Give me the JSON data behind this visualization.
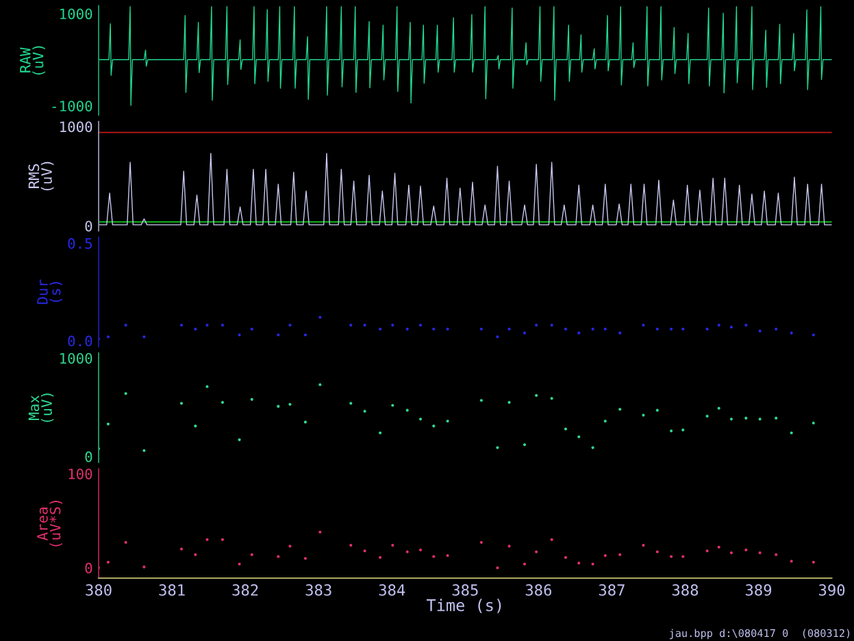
{
  "chart_data": [
    {
      "type": "line",
      "ylabel": "RAW\n(uV)",
      "color": "#20d890",
      "xlim": [
        380,
        390
      ],
      "ylim": [
        -1200,
        1170
      ],
      "yticks": [
        -1000,
        1000
      ],
      "tick_labels": "y",
      "x": [
        380.0,
        380.14,
        380.16,
        380.17,
        380.19,
        380.41,
        380.43,
        380.44,
        380.46,
        380.62,
        380.64,
        380.65,
        380.67,
        381.16,
        381.18,
        381.19,
        381.21,
        381.34,
        381.36,
        381.37,
        381.39,
        381.52,
        381.54,
        381.55,
        381.57,
        381.73,
        381.75,
        381.76,
        381.78,
        381.91,
        381.93,
        381.94,
        381.96,
        382.1,
        382.12,
        382.13,
        382.15,
        382.28,
        382.3,
        382.31,
        382.33,
        382.45,
        382.47,
        382.48,
        382.5,
        382.65,
        382.67,
        382.68,
        382.7,
        382.83,
        382.85,
        382.86,
        382.88,
        383.09,
        383.11,
        383.12,
        383.14,
        383.29,
        383.31,
        383.32,
        383.34,
        383.48,
        383.5,
        383.51,
        383.53,
        383.67,
        383.69,
        383.7,
        383.72,
        383.86,
        383.88,
        383.89,
        383.91,
        384.05,
        384.07,
        384.08,
        384.1,
        384.23,
        384.25,
        384.26,
        384.28,
        384.41,
        384.43,
        384.44,
        384.46,
        384.6,
        384.62,
        384.63,
        384.65,
        384.82,
        384.84,
        384.85,
        384.87,
        385.07,
        385.09,
        385.1,
        385.12,
        385.25,
        385.27,
        385.28,
        385.3,
        385.43,
        385.45,
        385.46,
        385.48,
        385.62,
        385.64,
        385.65,
        385.67,
        385.81,
        385.83,
        385.84,
        385.86,
        386.0,
        386.02,
        386.03,
        386.05,
        386.19,
        386.21,
        386.22,
        386.24,
        386.39,
        386.41,
        386.42,
        386.44,
        386.56,
        386.58,
        386.59,
        386.61,
        386.74,
        386.76,
        386.77,
        386.79,
        386.92,
        386.94,
        386.95,
        386.97,
        387.1,
        387.12,
        387.13,
        387.15,
        387.27,
        387.29,
        387.3,
        387.32,
        387.46,
        387.48,
        387.49,
        387.51,
        387.65,
        387.67,
        387.68,
        387.7,
        387.83,
        387.85,
        387.86,
        387.88,
        388.02,
        388.04,
        388.05,
        388.07,
        388.3,
        388.32,
        388.33,
        388.35,
        388.5,
        388.52,
        388.53,
        388.55,
        388.68,
        388.7,
        388.71,
        388.73,
        388.89,
        388.91,
        388.92,
        388.94,
        389.08,
        389.1,
        389.11,
        389.13,
        389.27,
        389.29,
        389.3,
        389.32,
        389.46,
        389.48,
        389.49,
        389.51,
        389.64,
        389.66,
        389.67,
        389.69,
        389.83,
        389.85,
        389.86,
        389.88,
        390.0
      ],
      "values": [
        0,
        0,
        780,
        -340,
        0,
        0,
        1150,
        -990,
        0,
        0,
        210,
        -140,
        0,
        0,
        960,
        -710,
        0,
        0,
        810,
        -280,
        0,
        0,
        1150,
        -880,
        0,
        0,
        1150,
        -540,
        0,
        0,
        430,
        -210,
        0,
        0,
        1150,
        -520,
        0,
        0,
        1090,
        -470,
        0,
        0,
        1150,
        -620,
        0,
        0,
        1150,
        -620,
        0,
        0,
        500,
        -860,
        0,
        0,
        1150,
        -770,
        0,
        0,
        1150,
        -590,
        0,
        0,
        1150,
        -710,
        0,
        0,
        830,
        -610,
        0,
        0,
        750,
        -440,
        0,
        0,
        1150,
        -690,
        0,
        0,
        810,
        -940,
        0,
        0,
        750,
        -510,
        0,
        0,
        750,
        -270,
        0,
        0,
        910,
        -270,
        0,
        0,
        980,
        -270,
        0,
        0,
        1150,
        -850,
        0,
        0,
        90,
        -200,
        0,
        0,
        1120,
        -620,
        0,
        0,
        370,
        -110,
        0,
        0,
        1150,
        -470,
        0,
        0,
        1150,
        -880,
        0,
        0,
        750,
        -470,
        0,
        0,
        540,
        -270,
        0,
        0,
        240,
        -200,
        0,
        0,
        960,
        -240,
        0,
        0,
        1150,
        -550,
        0,
        0,
        370,
        -170,
        0,
        0,
        1150,
        -570,
        0,
        0,
        1150,
        -440,
        0,
        0,
        700,
        -300,
        0,
        0,
        570,
        -520,
        0,
        0,
        1120,
        -570,
        0,
        0,
        1010,
        -720,
        0,
        0,
        1150,
        -500,
        0,
        0,
        1150,
        -650,
        0,
        0,
        640,
        -600,
        0,
        0,
        770,
        -520,
        0,
        0,
        570,
        -240,
        0,
        0,
        1080,
        -650,
        0,
        0,
        1150,
        -430,
        0,
        0
      ]
    },
    {
      "type": "line",
      "ylabel": "RMS\n(uV)",
      "color": "#c8c8f0",
      "xlim": [
        380,
        390
      ],
      "ylim": [
        -50,
        1050
      ],
      "yticks": [
        0,
        1000
      ],
      "tick_labels": "y",
      "ref_lines": [
        {
          "axis": "y",
          "value": 940,
          "color": "#c81818"
        },
        {
          "axis": "y",
          "value": 40,
          "color": "#10d020"
        }
      ],
      "x": [
        380.0,
        380.11,
        380.15,
        380.19,
        380.39,
        380.43,
        380.47,
        380.58,
        380.62,
        380.66,
        381.12,
        381.16,
        381.2,
        381.3,
        381.34,
        381.38,
        381.49,
        381.53,
        381.57,
        381.71,
        381.75,
        381.79,
        381.89,
        381.93,
        381.97,
        382.07,
        382.11,
        382.15,
        382.24,
        382.28,
        382.32,
        382.41,
        382.45,
        382.49,
        382.62,
        382.66,
        382.7,
        382.79,
        382.83,
        382.87,
        383.07,
        383.11,
        383.15,
        383.27,
        383.31,
        383.35,
        383.44,
        383.48,
        383.52,
        383.65,
        383.69,
        383.73,
        383.83,
        383.87,
        383.91,
        384.0,
        384.04,
        384.08,
        384.19,
        384.23,
        384.27,
        384.35,
        384.39,
        384.43,
        384.53,
        384.57,
        384.61,
        384.71,
        384.75,
        384.79,
        384.89,
        384.93,
        384.97,
        385.06,
        385.1,
        385.14,
        385.23,
        385.27,
        385.31,
        385.4,
        385.44,
        385.48,
        385.56,
        385.6,
        385.64,
        385.77,
        385.81,
        385.85,
        385.93,
        385.97,
        386.01,
        386.14,
        386.18,
        386.22,
        386.31,
        386.35,
        386.39,
        386.51,
        386.55,
        386.59,
        386.7,
        386.74,
        386.78,
        386.87,
        386.91,
        386.95,
        387.06,
        387.1,
        387.14,
        387.22,
        387.26,
        387.3,
        387.4,
        387.44,
        387.48,
        387.6,
        387.64,
        387.68,
        387.8,
        387.84,
        387.88,
        387.99,
        388.03,
        388.07,
        388.16,
        388.2,
        388.24,
        388.34,
        388.38,
        388.42,
        388.5,
        388.54,
        388.58,
        388.7,
        388.74,
        388.78,
        388.87,
        388.91,
        388.95,
        389.04,
        389.08,
        389.12,
        389.23,
        389.27,
        389.31,
        389.45,
        389.49,
        389.53,
        389.63,
        389.67,
        389.71,
        389.82,
        389.86,
        389.9,
        390.0
      ],
      "values": [
        10,
        10,
        330,
        10,
        10,
        640,
        10,
        10,
        70,
        10,
        10,
        550,
        10,
        10,
        310,
        10,
        10,
        730,
        10,
        10,
        570,
        10,
        10,
        190,
        10,
        10,
        570,
        10,
        10,
        570,
        10,
        10,
        420,
        10,
        10,
        540,
        10,
        10,
        350,
        10,
        10,
        730,
        10,
        10,
        570,
        10,
        10,
        450,
        10,
        10,
        510,
        10,
        10,
        350,
        10,
        10,
        530,
        10,
        10,
        410,
        10,
        10,
        400,
        10,
        10,
        200,
        10,
        10,
        480,
        10,
        10,
        380,
        10,
        10,
        440,
        10,
        10,
        210,
        10,
        10,
        600,
        10,
        10,
        450,
        10,
        10,
        210,
        10,
        10,
        620,
        10,
        10,
        640,
        10,
        10,
        210,
        10,
        10,
        410,
        10,
        10,
        210,
        10,
        10,
        420,
        10,
        10,
        220,
        10,
        10,
        420,
        10,
        10,
        420,
        10,
        10,
        460,
        10,
        10,
        260,
        10,
        10,
        410,
        10,
        10,
        360,
        10,
        10,
        480,
        10,
        10,
        480,
        10,
        10,
        410,
        10,
        10,
        320,
        10,
        10,
        350,
        10,
        10,
        330,
        10,
        10,
        490,
        10,
        10,
        420,
        10,
        10,
        420,
        10,
        10
      ]
    },
    {
      "type": "scatter",
      "ylabel": "Dur\n(s)",
      "color": "#2828e8",
      "xlim": [
        380,
        390
      ],
      "ylim": [
        -0.03,
        0.53
      ],
      "yticks": [
        {
          "value": 0,
          "label": "0.0"
        },
        {
          "value": 0.5,
          "label": "0.5"
        }
      ],
      "tick_labels": "y",
      "x": [
        380.0,
        380.13,
        380.37,
        380.62,
        381.13,
        381.32,
        381.48,
        381.69,
        381.92,
        382.09,
        382.45,
        382.61,
        382.82,
        383.02,
        383.44,
        383.63,
        383.84,
        384.01,
        384.21,
        384.39,
        384.57,
        384.76,
        385.22,
        385.44,
        385.6,
        385.81,
        385.97,
        386.18,
        386.37,
        386.55,
        386.74,
        386.91,
        387.11,
        387.43,
        387.62,
        387.81,
        387.97,
        388.3,
        388.46,
        388.63,
        388.83,
        389.02,
        389.24,
        389.45,
        389.75
      ],
      "values": [
        0.01,
        0.02,
        0.08,
        0.02,
        0.08,
        0.06,
        0.08,
        0.08,
        0.03,
        0.06,
        0.03,
        0.08,
        0.03,
        0.12,
        0.08,
        0.08,
        0.06,
        0.08,
        0.06,
        0.08,
        0.06,
        0.06,
        0.06,
        0.02,
        0.06,
        0.04,
        0.08,
        0.08,
        0.06,
        0.04,
        0.06,
        0.06,
        0.04,
        0.08,
        0.06,
        0.06,
        0.06,
        0.06,
        0.08,
        0.07,
        0.08,
        0.05,
        0.06,
        0.04,
        0.03
      ]
    },
    {
      "type": "scatter",
      "ylabel": "Max\n(uV)",
      "color": "#30d890",
      "xlim": [
        380,
        390
      ],
      "ylim": [
        -60,
        1050
      ],
      "yticks": [
        0,
        1000
      ],
      "tick_labels": "y",
      "x": [
        380.0,
        380.13,
        380.37,
        380.62,
        381.13,
        381.32,
        381.48,
        381.69,
        381.92,
        382.09,
        382.45,
        382.61,
        382.82,
        383.02,
        383.44,
        383.63,
        383.84,
        384.01,
        384.21,
        384.39,
        384.57,
        384.76,
        385.22,
        385.44,
        385.6,
        385.81,
        385.97,
        386.18,
        386.37,
        386.55,
        386.74,
        386.91,
        387.11,
        387.43,
        387.62,
        387.81,
        387.97,
        388.3,
        388.46,
        388.63,
        388.83,
        389.02,
        389.24,
        389.45,
        389.75
      ],
      "values": [
        80,
        330,
        640,
        60,
        540,
        310,
        710,
        550,
        170,
        580,
        510,
        530,
        350,
        730,
        540,
        460,
        240,
        520,
        470,
        380,
        310,
        360,
        570,
        90,
        550,
        120,
        620,
        590,
        280,
        200,
        90,
        360,
        480,
        420,
        470,
        260,
        270,
        410,
        490,
        380,
        390,
        380,
        390,
        240,
        340
      ]
    },
    {
      "type": "scatter",
      "ylabel": "Area\n(uV*S)",
      "color": "#e0306a",
      "xlim": [
        380,
        390
      ],
      "ylim": [
        -11,
        105
      ],
      "yticks": [
        0,
        100
      ],
      "xticks": [
        380,
        381,
        382,
        383,
        384,
        385,
        386,
        387,
        388,
        389,
        390
      ],
      "xlabel": "Time (s)",
      "annotations": [
        "jau.bpp d:\\080417 0  (080312)"
      ],
      "x": [
        380.0,
        380.13,
        380.37,
        380.62,
        381.13,
        381.32,
        381.48,
        381.69,
        381.92,
        382.09,
        382.45,
        382.61,
        382.82,
        383.02,
        383.44,
        383.63,
        383.84,
        384.01,
        384.21,
        384.39,
        384.57,
        384.76,
        385.22,
        385.44,
        385.6,
        385.81,
        385.97,
        386.18,
        386.37,
        386.55,
        386.74,
        386.91,
        387.11,
        387.43,
        387.62,
        387.81,
        387.97,
        388.3,
        388.46,
        388.63,
        388.83,
        389.02,
        389.24,
        389.45,
        389.75
      ],
      "values": [
        0,
        6,
        27,
        1,
        20,
        14,
        30,
        30,
        4,
        14,
        12,
        23,
        10,
        38,
        24,
        18,
        11,
        24,
        17,
        19,
        12,
        13,
        27,
        0,
        23,
        4,
        17,
        30,
        11,
        5,
        4,
        13,
        14,
        24,
        17,
        12,
        12,
        18,
        22,
        16,
        19,
        16,
        14,
        7,
        6
      ]
    }
  ]
}
